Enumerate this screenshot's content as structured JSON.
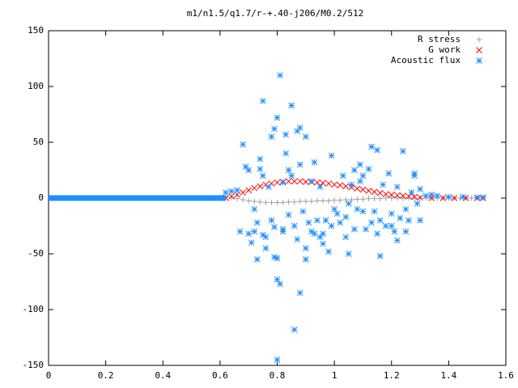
{
  "chart_data": {
    "type": "scatter",
    "title": "m1/n1.5/q1.7/r-+.40-j206/M0.2/512",
    "xlabel": "",
    "ylabel": "",
    "xlim": [
      0,
      1.6
    ],
    "ylim": [
      -150,
      150
    ],
    "xticks": [
      "0",
      "0.2",
      "0.4",
      "0.6",
      "0.8",
      "1",
      "1.2",
      "1.4",
      "1.6"
    ],
    "yticks": [
      "150",
      "100",
      "50",
      "0",
      "-50",
      "-100",
      "-150"
    ],
    "grid": false,
    "legend_position": "top-right",
    "series": [
      {
        "name": "R stress",
        "marker": "plus",
        "color": "#a0a0a0",
        "points": [
          [
            0.62,
            1.0
          ],
          [
            0.64,
            0.5
          ],
          [
            0.66,
            -0.5
          ],
          [
            0.68,
            -1.5
          ],
          [
            0.7,
            -2.5
          ],
          [
            0.72,
            -3.0
          ],
          [
            0.74,
            -3.5
          ],
          [
            0.76,
            -4.0
          ],
          [
            0.78,
            -4.0
          ],
          [
            0.8,
            -4.0
          ],
          [
            0.82,
            -4.0
          ],
          [
            0.84,
            -3.5
          ],
          [
            0.86,
            -3.5
          ],
          [
            0.88,
            -3.0
          ],
          [
            0.9,
            -3.0
          ],
          [
            0.92,
            -3.0
          ],
          [
            0.94,
            -2.5
          ],
          [
            0.96,
            -2.5
          ],
          [
            0.98,
            -2.5
          ],
          [
            1.0,
            -2.0
          ],
          [
            1.02,
            -2.0
          ],
          [
            1.04,
            -1.5
          ],
          [
            1.06,
            -1.5
          ],
          [
            1.08,
            -1.0
          ],
          [
            1.1,
            -1.0
          ],
          [
            1.12,
            -0.5
          ],
          [
            1.14,
            -0.5
          ],
          [
            1.16,
            -0.5
          ],
          [
            1.18,
            0.0
          ],
          [
            1.2,
            0.0
          ],
          [
            1.22,
            0.0
          ],
          [
            1.24,
            0.0
          ],
          [
            1.26,
            0.0
          ],
          [
            1.28,
            0.0
          ],
          [
            1.3,
            0.0
          ],
          [
            1.32,
            0.0
          ],
          [
            1.34,
            0.0
          ],
          [
            1.36,
            0.0
          ],
          [
            1.38,
            0.0
          ],
          [
            1.4,
            0.0
          ],
          [
            1.42,
            0.0
          ],
          [
            1.44,
            0.0
          ],
          [
            1.46,
            0.0
          ],
          [
            1.48,
            0.0
          ],
          [
            1.5,
            0.0
          ],
          [
            1.52,
            0.0
          ]
        ]
      },
      {
        "name": "G work",
        "marker": "cross",
        "color": "#ff0000",
        "points": [
          [
            0.62,
            0.0
          ],
          [
            0.64,
            1.5
          ],
          [
            0.66,
            3.0
          ],
          [
            0.68,
            5.0
          ],
          [
            0.7,
            7.0
          ],
          [
            0.72,
            9.0
          ],
          [
            0.74,
            10.5
          ],
          [
            0.76,
            12.0
          ],
          [
            0.78,
            13.0
          ],
          [
            0.8,
            14.0
          ],
          [
            0.82,
            14.5
          ],
          [
            0.84,
            15.0
          ],
          [
            0.86,
            15.0
          ],
          [
            0.88,
            15.0
          ],
          [
            0.9,
            14.5
          ],
          [
            0.92,
            14.5
          ],
          [
            0.94,
            14.0
          ],
          [
            0.96,
            13.5
          ],
          [
            0.98,
            13.0
          ],
          [
            1.0,
            12.0
          ],
          [
            1.02,
            11.5
          ],
          [
            1.04,
            10.5
          ],
          [
            1.06,
            9.5
          ],
          [
            1.08,
            8.5
          ],
          [
            1.1,
            7.5
          ],
          [
            1.12,
            6.5
          ],
          [
            1.14,
            5.5
          ],
          [
            1.16,
            4.5
          ],
          [
            1.18,
            3.5
          ],
          [
            1.2,
            3.0
          ],
          [
            1.22,
            2.5
          ],
          [
            1.24,
            2.0
          ],
          [
            1.26,
            1.5
          ],
          [
            1.28,
            1.0
          ],
          [
            1.3,
            0.5
          ],
          [
            1.34,
            0.0
          ],
          [
            1.38,
            0.0
          ],
          [
            1.42,
            0.0
          ],
          [
            1.46,
            0.0
          ],
          [
            1.5,
            0.0
          ],
          [
            1.52,
            0.0
          ]
        ]
      },
      {
        "name": "Acoustic flux",
        "marker": "star",
        "color": "#1e90ff",
        "baseline_x_range": [
          0.0,
          0.62
        ],
        "baseline_y": 0,
        "points": [
          [
            0.62,
            5
          ],
          [
            0.64,
            6
          ],
          [
            0.66,
            7
          ],
          [
            0.68,
            48
          ],
          [
            0.69,
            28
          ],
          [
            0.7,
            25
          ],
          [
            0.7,
            -32
          ],
          [
            0.71,
            -40
          ],
          [
            0.72,
            -10
          ],
          [
            0.73,
            -22
          ],
          [
            0.74,
            35
          ],
          [
            0.75,
            20
          ],
          [
            0.75,
            -33
          ],
          [
            0.76,
            -45
          ],
          [
            0.77,
            10
          ],
          [
            0.78,
            -20
          ],
          [
            0.78,
            55
          ],
          [
            0.79,
            -26
          ],
          [
            0.8,
            -54
          ],
          [
            0.79,
            62
          ],
          [
            0.8,
            72
          ],
          [
            0.81,
            110
          ],
          [
            0.81,
            -77
          ],
          [
            0.82,
            14
          ],
          [
            0.82,
            -30
          ],
          [
            0.83,
            40
          ],
          [
            0.84,
            -15
          ],
          [
            0.85,
            20
          ],
          [
            0.85,
            83
          ],
          [
            0.86,
            -25
          ],
          [
            0.87,
            -37
          ],
          [
            0.87,
            60
          ],
          [
            0.88,
            30
          ],
          [
            0.88,
            -85
          ],
          [
            0.89,
            -12
          ],
          [
            0.9,
            -45
          ],
          [
            0.9,
            -55
          ],
          [
            0.91,
            -22
          ],
          [
            0.92,
            -30
          ],
          [
            0.93,
            32
          ],
          [
            0.94,
            -20
          ],
          [
            0.95,
            10
          ],
          [
            0.95,
            -35
          ],
          [
            0.96,
            -41
          ],
          [
            0.97,
            -20
          ],
          [
            0.98,
            -48
          ],
          [
            0.99,
            -25
          ],
          [
            1.0,
            -10
          ],
          [
            1.01,
            -14
          ],
          [
            1.02,
            -22
          ],
          [
            1.03,
            20
          ],
          [
            1.04,
            -17
          ],
          [
            1.05,
            -5
          ],
          [
            1.06,
            12
          ],
          [
            1.07,
            -28
          ],
          [
            1.08,
            -10
          ],
          [
            1.09,
            15
          ],
          [
            1.1,
            -12
          ],
          [
            1.11,
            -28
          ],
          [
            1.12,
            26
          ],
          [
            1.13,
            -22
          ],
          [
            1.14,
            -12
          ],
          [
            1.15,
            -32
          ],
          [
            1.16,
            -20
          ],
          [
            1.17,
            12
          ],
          [
            1.18,
            -25
          ],
          [
            1.19,
            22
          ],
          [
            1.2,
            -14
          ],
          [
            1.21,
            -30
          ],
          [
            1.22,
            10
          ],
          [
            1.23,
            -18
          ],
          [
            1.24,
            42
          ],
          [
            1.25,
            -10
          ],
          [
            1.26,
            -20
          ],
          [
            1.27,
            5
          ],
          [
            1.28,
            22
          ],
          [
            1.29,
            -5
          ],
          [
            1.3,
            8
          ],
          [
            1.32,
            2
          ],
          [
            1.34,
            3
          ],
          [
            1.36,
            2
          ],
          [
            1.4,
            1
          ],
          [
            1.45,
            1
          ],
          [
            1.5,
            0.5
          ],
          [
            1.52,
            0.5
          ],
          [
            0.67,
            -30
          ],
          [
            0.72,
            -30
          ],
          [
            0.73,
            -55
          ],
          [
            0.74,
            26
          ],
          [
            0.75,
            87
          ],
          [
            0.76,
            -35
          ],
          [
            0.79,
            -53
          ],
          [
            0.8,
            -73
          ],
          [
            0.82,
            -28
          ],
          [
            0.83,
            57
          ],
          [
            0.84,
            25
          ],
          [
            0.86,
            -118
          ],
          [
            0.88,
            63
          ],
          [
            0.9,
            55
          ],
          [
            0.92,
            15
          ],
          [
            0.93,
            -32
          ],
          [
            0.96,
            -32
          ],
          [
            0.99,
            38
          ],
          [
            1.04,
            -35
          ],
          [
            1.05,
            -50
          ],
          [
            1.07,
            25
          ],
          [
            1.09,
            30
          ],
          [
            1.1,
            20
          ],
          [
            1.13,
            46
          ],
          [
            1.15,
            43
          ],
          [
            1.16,
            -52
          ],
          [
            1.2,
            -25
          ],
          [
            1.22,
            -38
          ],
          [
            1.25,
            -30
          ],
          [
            1.28,
            20
          ],
          [
            1.3,
            -20
          ],
          [
            0.8,
            -145
          ]
        ]
      }
    ]
  }
}
